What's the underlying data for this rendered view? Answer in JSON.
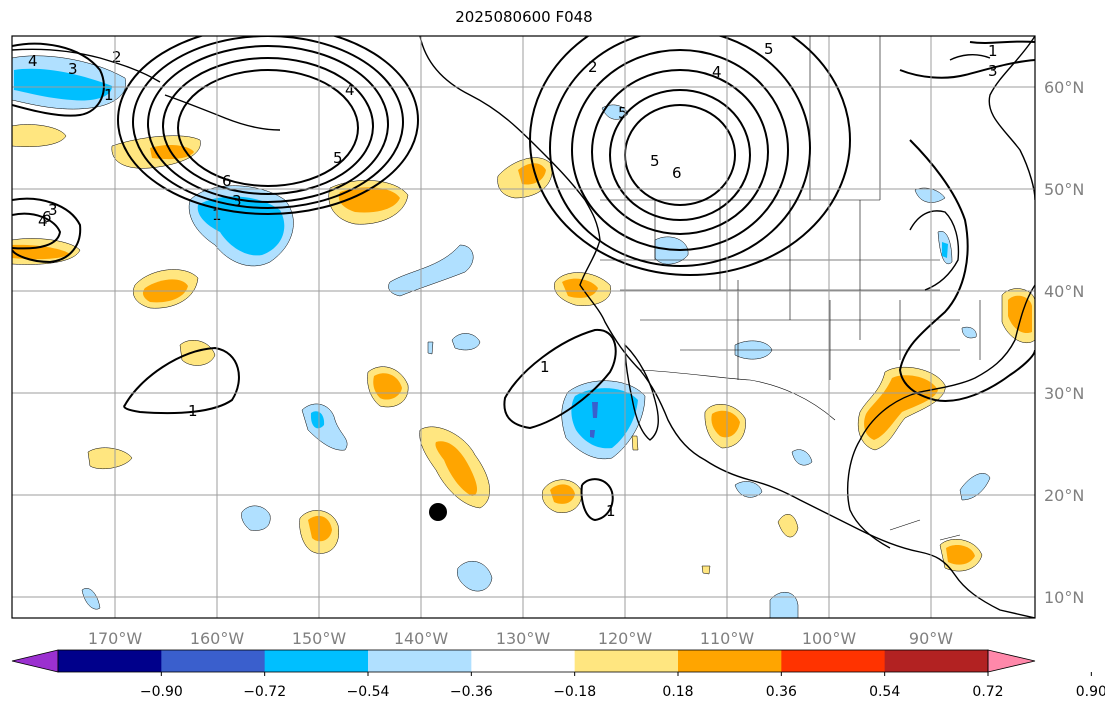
{
  "title": "2025080600 F048",
  "map": {
    "region": "North-east Pacific and North America",
    "lon_labels": [
      "170°W",
      "160°W",
      "150°W",
      "140°W",
      "130°W",
      "120°W",
      "110°W",
      "100°W",
      "90°W"
    ],
    "lat_labels": [
      "60°N",
      "50°N",
      "40°N",
      "30°N",
      "20°N",
      "10°N"
    ],
    "contour_labels": [
      "4",
      "3",
      "2",
      "1",
      "6",
      "5",
      "4",
      "3",
      "1",
      "6",
      "4",
      "3",
      "1",
      "2",
      "4",
      "5",
      "5",
      "6",
      "3",
      "1",
      "1",
      "1",
      "5"
    ],
    "marker": "black-dot"
  },
  "colorbar": {
    "ticks": [
      "−0.90",
      "−0.72",
      "−0.54",
      "−0.36",
      "−0.18",
      "0.18",
      "0.36",
      "0.54",
      "0.72",
      "0.90"
    ],
    "colors": [
      "#9b30d0",
      "#00008b",
      "#3a5fcd",
      "#00bfff",
      "#b0e0ff",
      "#ffffff",
      "#ffe680",
      "#ffa500",
      "#ff3300",
      "#b22222",
      "#ff88aa"
    ]
  },
  "colors": {
    "neg_light": "#b0e0ff",
    "neg_mid": "#00bfff",
    "neg_strong": "#3a5fcd",
    "pos_light": "#ffe680",
    "pos_mid": "#ffa500",
    "grid": "#9e9e9e"
  }
}
